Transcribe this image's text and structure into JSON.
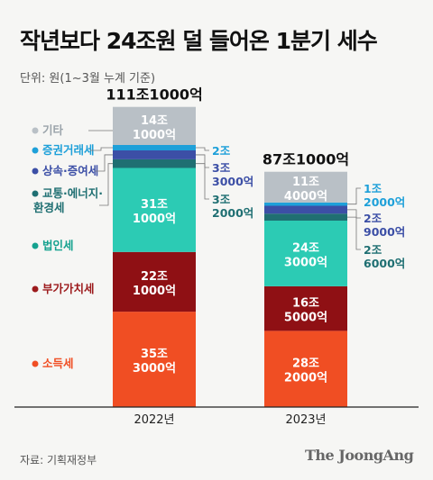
{
  "title": "작년보다 24조원 덜 들어온 1분기 세수",
  "unit_note": "단위: 원(1~3월 누계 기준)",
  "source": "자료: 기획재정부",
  "brand": "The JoongAng",
  "chart_data": {
    "type": "bar",
    "stacked": true,
    "unit": "조원",
    "categories": [
      "2022년",
      "2023년"
    ],
    "totals": [
      111.1,
      87.1
    ],
    "total_labels": [
      "111조1000억",
      "87조1000억"
    ],
    "ylim": [
      0,
      115
    ],
    "grid": false,
    "legend_position": "left",
    "series": [
      {
        "name": "소득세",
        "color": "#f04e23",
        "label_color": "#f04e23",
        "values": [
          35.3,
          28.2
        ],
        "value_labels": [
          [
            "35조",
            "3000억"
          ],
          [
            "28조",
            "2000억"
          ]
        ]
      },
      {
        "name": "부가가치세",
        "color": "#8f1014",
        "label_color": "#9c1a1c",
        "values": [
          22.1,
          16.5
        ],
        "value_labels": [
          [
            "22조",
            "1000억"
          ],
          [
            "16조",
            "5000억"
          ]
        ]
      },
      {
        "name": "법인세",
        "color": "#2ccbb4",
        "label_color": "#15a28f",
        "values": [
          31.1,
          24.3
        ],
        "value_labels": [
          [
            "31조",
            "1000억"
          ],
          [
            "24조",
            "3000억"
          ]
        ]
      },
      {
        "name": "교통·에너지·환경세",
        "color": "#1f6f72",
        "label_color": "#1f6f72",
        "values": [
          3.2,
          2.6
        ],
        "value_labels": [
          [
            "3조",
            "2000억"
          ],
          [
            "2조",
            "6000억"
          ]
        ]
      },
      {
        "name": "상속·증여세",
        "color": "#3c4fa6",
        "label_color": "#3c4fa6",
        "values": [
          3.3,
          2.9
        ],
        "value_labels": [
          [
            "3조",
            "3000억"
          ],
          [
            "2조",
            "9000억"
          ]
        ]
      },
      {
        "name": "증권거래세",
        "color": "#1ea0d9",
        "label_color": "#1ea0d9",
        "values": [
          2.0,
          1.2
        ],
        "value_labels": [
          [
            "2조",
            ""
          ],
          [
            "1조",
            "2000억"
          ]
        ]
      },
      {
        "name": "기타",
        "color": "#b9c0c6",
        "label_color": "#9aa3aa",
        "values": [
          14.1,
          11.4
        ],
        "value_labels": [
          [
            "14조",
            "1000억"
          ],
          [
            "11조",
            "4000억"
          ]
        ]
      }
    ]
  }
}
